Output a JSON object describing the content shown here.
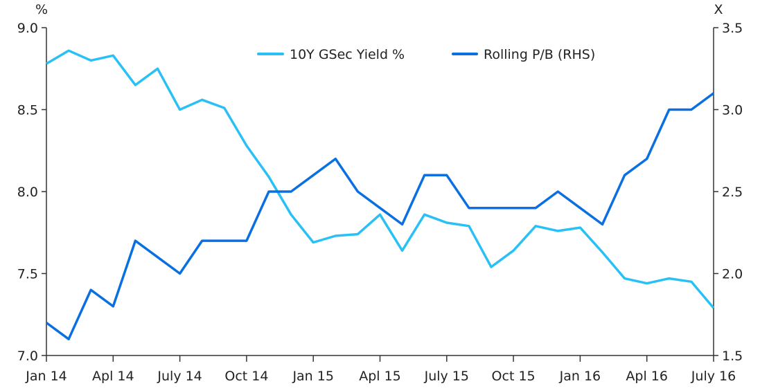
{
  "chart_data": {
    "type": "line",
    "left_unit": "%",
    "right_unit": "X",
    "left_ylim": [
      7.0,
      9.0
    ],
    "right_ylim": [
      1.5,
      3.5
    ],
    "left_ticks": [
      "7.0",
      "7.5",
      "8.0",
      "8.5",
      "9.0"
    ],
    "right_ticks": [
      "1.5",
      "2.0",
      "2.5",
      "3.0",
      "3.5"
    ],
    "x_tick_labels": [
      "Jan 14",
      "Apl 14",
      "July 14",
      "Oct 14",
      "Jan 15",
      "Apl 15",
      "July 15",
      "Oct 15",
      "Jan 16",
      "Apl 16",
      "July 16"
    ],
    "x": [
      "2014-01",
      "2014-02",
      "2014-03",
      "2014-04",
      "2014-05",
      "2014-06",
      "2014-07",
      "2014-08",
      "2014-09",
      "2014-10",
      "2014-11",
      "2014-12",
      "2015-01",
      "2015-02",
      "2015-03",
      "2015-04",
      "2015-05",
      "2015-06",
      "2015-07",
      "2015-08",
      "2015-09",
      "2015-10",
      "2015-11",
      "2015-12",
      "2016-01",
      "2016-02",
      "2016-03",
      "2016-04",
      "2016-05",
      "2016-06",
      "2016-07"
    ],
    "grid": false,
    "legend_position": "top-center",
    "series": [
      {
        "name": "10Y GSec Yield %",
        "axis": "left",
        "color": "#29C1F5",
        "values": [
          8.78,
          8.86,
          8.8,
          8.83,
          8.65,
          8.75,
          8.5,
          8.56,
          8.51,
          8.28,
          8.09,
          7.86,
          7.69,
          7.73,
          7.74,
          7.86,
          7.64,
          7.86,
          7.81,
          7.79,
          7.54,
          7.64,
          7.79,
          7.76,
          7.78,
          7.63,
          7.47,
          7.44,
          7.47,
          7.45,
          7.29
        ]
      },
      {
        "name": "Rolling P/B (RHS)",
        "axis": "right",
        "color": "#0A6FE0",
        "values": [
          1.7,
          1.6,
          1.9,
          1.8,
          2.2,
          2.1,
          2.0,
          2.2,
          2.2,
          2.2,
          2.5,
          2.5,
          2.6,
          2.7,
          2.5,
          2.4,
          2.3,
          2.6,
          2.6,
          2.4,
          2.4,
          2.4,
          2.4,
          2.5,
          2.4,
          2.3,
          2.6,
          2.7,
          3.0,
          3.0,
          3.1
        ]
      }
    ]
  }
}
